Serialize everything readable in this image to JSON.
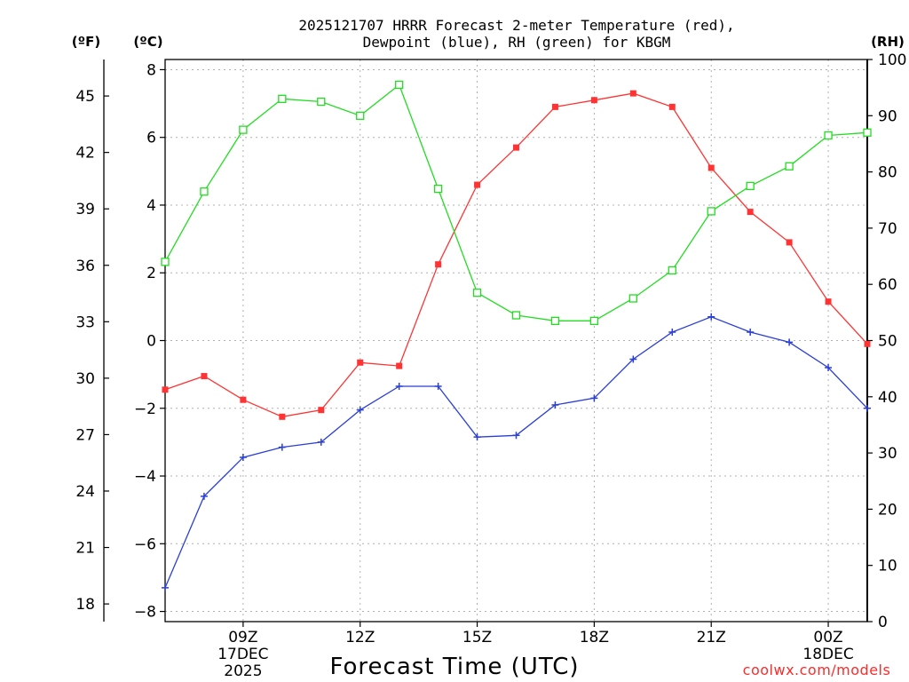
{
  "chart_data": {
    "type": "line",
    "title_line1": "2025121707 HRRR Forecast 2-meter Temperature (red),",
    "title_line2": "Dewpoint (blue), RH (green) for KBGM",
    "xlabel": "Forecast Time (UTC)",
    "credit": "coolwx.com/models",
    "units": {
      "fahrenheit": "(ºF)",
      "celsius": "(ºC)",
      "rh": "(RH)"
    },
    "hours": [
      7,
      8,
      9,
      10,
      11,
      12,
      13,
      14,
      15,
      16,
      17,
      18,
      19,
      20,
      21,
      22,
      23,
      24,
      25
    ],
    "xlim": [
      7,
      25
    ],
    "x_ticks": [
      {
        "hour": 9,
        "line1": "09Z",
        "line2": "17DEC",
        "line3": "2025"
      },
      {
        "hour": 12,
        "line1": "12Z",
        "line2": "",
        "line3": ""
      },
      {
        "hour": 15,
        "line1": "15Z",
        "line2": "",
        "line3": ""
      },
      {
        "hour": 18,
        "line1": "18Z",
        "line2": "",
        "line3": ""
      },
      {
        "hour": 21,
        "line1": "21Z",
        "line2": "",
        "line3": ""
      },
      {
        "hour": 24,
        "line1": "00Z",
        "line2": "18DEC",
        "line3": ""
      }
    ],
    "ylim_c": [
      -8.3,
      8.3
    ],
    "y_ticks_c": [
      "−8",
      "−6",
      "−4",
      "−2",
      "0",
      "2",
      "4",
      "6",
      "8"
    ],
    "y_tick_values_c": [
      -8,
      -6,
      -4,
      -2,
      0,
      2,
      4,
      6,
      8
    ],
    "y_ticks_f": [
      "18",
      "21",
      "24",
      "27",
      "30",
      "33",
      "36",
      "39",
      "42",
      "45"
    ],
    "y_tick_values_f": [
      18,
      21,
      24,
      27,
      30,
      33,
      36,
      39,
      42,
      45
    ],
    "ylim_rh": [
      0,
      100
    ],
    "y_ticks_rh": [
      "0",
      "10",
      "20",
      "30",
      "40",
      "50",
      "60",
      "70",
      "80",
      "90",
      "100"
    ],
    "y_tick_values_rh": [
      0,
      10,
      20,
      30,
      40,
      50,
      60,
      70,
      80,
      90,
      100
    ],
    "series": [
      {
        "name": "Temperature",
        "color": "#ff3333",
        "marker": "filled-square",
        "axis": "celsius",
        "values": [
          -1.45,
          -1.05,
          -1.75,
          -2.25,
          -2.05,
          -0.65,
          -0.75,
          2.25,
          4.6,
          5.7,
          6.9,
          7.1,
          7.3,
          6.9,
          5.1,
          3.8,
          2.9,
          1.15,
          -0.1
        ]
      },
      {
        "name": "Dewpoint",
        "color": "#2a3fd6",
        "marker": "plus",
        "axis": "celsius",
        "values": [
          -7.3,
          -4.6,
          -3.45,
          -3.15,
          -3.0,
          -2.05,
          -1.35,
          -1.35,
          -2.85,
          -2.8,
          -1.9,
          -1.7,
          -0.55,
          0.25,
          0.7,
          0.25,
          -0.05,
          -0.8,
          -2.0
        ]
      },
      {
        "name": "RH",
        "color": "#22dd22",
        "marker": "open-square",
        "axis": "rh",
        "values": [
          64,
          76.5,
          87.5,
          93,
          92.5,
          90,
          95.5,
          77,
          58.5,
          54.5,
          53.5,
          53.5,
          57.5,
          62.5,
          73,
          77.5,
          81,
          86.5,
          87
        ]
      }
    ]
  }
}
